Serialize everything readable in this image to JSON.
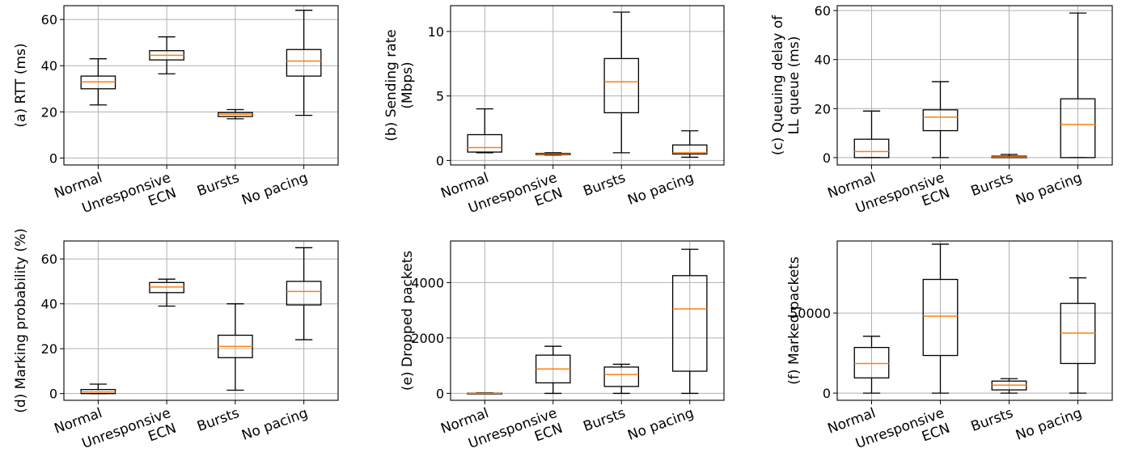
{
  "style": {
    "median_color": "#ff7f0e",
    "box_color": "#000000",
    "grid_color": "#b0b0b0"
  },
  "chart_data": [
    {
      "type": "box",
      "ylabel": [
        "(a) RTT (ms)"
      ],
      "categories": [
        [
          "Normal"
        ],
        [
          "Unresponsive",
          "ECN"
        ],
        [
          "Bursts"
        ],
        [
          "No pacing"
        ]
      ],
      "ylim": [
        -3,
        66
      ],
      "yticks": [
        0,
        20,
        40,
        60
      ],
      "yticklabels": [
        "0",
        "20",
        "40",
        "60"
      ],
      "grid": true,
      "boxes": [
        {
          "whislo": 23,
          "q1": 30,
          "med": 33,
          "q3": 35.5,
          "whishi": 43
        },
        {
          "whislo": 36.5,
          "q1": 42.5,
          "med": 44.5,
          "q3": 46.5,
          "whishi": 52.5
        },
        {
          "whislo": 17,
          "q1": 18,
          "med": 19,
          "q3": 19.7,
          "whishi": 21
        },
        {
          "whislo": 18.5,
          "q1": 35.5,
          "med": 42,
          "q3": 47,
          "whishi": 64
        }
      ]
    },
    {
      "type": "box",
      "ylabel": [
        "(b) Sending rate",
        "(Mbps)"
      ],
      "categories": [
        [
          "Normal"
        ],
        [
          "Unresponsive",
          "ECN"
        ],
        [
          "Bursts"
        ],
        [
          "No pacing"
        ]
      ],
      "ylim": [
        -0.35,
        12
      ],
      "yticks": [
        0,
        5,
        10
      ],
      "yticklabels": [
        "0",
        "5",
        "10"
      ],
      "grid": true,
      "boxes": [
        {
          "whislo": 0.6,
          "q1": 0.65,
          "med": 1.0,
          "q3": 2.0,
          "whishi": 4.0
        },
        {
          "whislo": 0.42,
          "q1": 0.45,
          "med": 0.5,
          "q3": 0.55,
          "whishi": 0.6
        },
        {
          "whislo": 0.6,
          "q1": 3.7,
          "med": 6.1,
          "q3": 7.9,
          "whishi": 11.5
        },
        {
          "whislo": 0.25,
          "q1": 0.5,
          "med": 0.6,
          "q3": 1.2,
          "whishi": 2.3
        }
      ]
    },
    {
      "type": "box",
      "ylabel": [
        "(c) Queuing delay of",
        "LL queue (ms)"
      ],
      "categories": [
        [
          "Normal"
        ],
        [
          "Unresponsive",
          "ECN"
        ],
        [
          "Bursts"
        ],
        [
          "No pacing"
        ]
      ],
      "ylim": [
        -3,
        62
      ],
      "yticks": [
        0,
        20,
        40,
        60
      ],
      "yticklabels": [
        "0",
        "20",
        "40",
        "60"
      ],
      "grid": true,
      "boxes": [
        {
          "whislo": 0,
          "q1": 0,
          "med": 2.5,
          "q3": 7.5,
          "whishi": 19
        },
        {
          "whislo": 0,
          "q1": 11,
          "med": 16.5,
          "q3": 19.5,
          "whishi": 31
        },
        {
          "whislo": 0,
          "q1": 0,
          "med": 0.3,
          "q3": 0.6,
          "whishi": 1.3
        },
        {
          "whislo": 0,
          "q1": 0,
          "med": 13.5,
          "q3": 24,
          "whishi": 59
        }
      ]
    },
    {
      "type": "box",
      "ylabel": [
        "(d) Marking probability (%)"
      ],
      "categories": [
        [
          "Normal"
        ],
        [
          "Unresponsive",
          "ECN"
        ],
        [
          "Bursts"
        ],
        [
          "No pacing"
        ]
      ],
      "ylim": [
        -3,
        68
      ],
      "yticks": [
        0,
        20,
        40,
        60
      ],
      "yticklabels": [
        "0",
        "20",
        "40",
        "60"
      ],
      "grid": true,
      "boxes": [
        {
          "whislo": 0,
          "q1": 0,
          "med": 0.7,
          "q3": 1.8,
          "whishi": 4.2
        },
        {
          "whislo": 39,
          "q1": 45,
          "med": 47.5,
          "q3": 49.5,
          "whishi": 51
        },
        {
          "whislo": 1.5,
          "q1": 16,
          "med": 21,
          "q3": 26,
          "whishi": 40
        },
        {
          "whislo": 24,
          "q1": 39.5,
          "med": 45.5,
          "q3": 50,
          "whishi": 65
        }
      ]
    },
    {
      "type": "box",
      "ylabel": [
        "(e) Dropped packets"
      ],
      "categories": [
        [
          "Normal"
        ],
        [
          "Unresponsive",
          "ECN"
        ],
        [
          "Bursts"
        ],
        [
          "No pacing"
        ]
      ],
      "ylim": [
        -250,
        5500
      ],
      "yticks": [
        0,
        2000,
        4000
      ],
      "yticklabels": [
        "0",
        "2000",
        "4000"
      ],
      "grid": true,
      "boxes": [
        {
          "whislo": 0,
          "q1": 0,
          "med": 0,
          "q3": 10,
          "whishi": 20
        },
        {
          "whislo": 0,
          "q1": 380,
          "med": 880,
          "q3": 1380,
          "whishi": 1700
        },
        {
          "whislo": 0,
          "q1": 250,
          "med": 680,
          "q3": 950,
          "whishi": 1050
        },
        {
          "whislo": 0,
          "q1": 800,
          "med": 3050,
          "q3": 4250,
          "whishi": 5200
        }
      ]
    },
    {
      "type": "box",
      "ylabel": [
        "(f) Marked packets"
      ],
      "categories": [
        [
          "Normal"
        ],
        [
          "Unresponsive",
          "ECN"
        ],
        [
          "Bursts"
        ],
        [
          "No pacing"
        ]
      ],
      "ylim": [
        -4500,
        95000
      ],
      "yticks": [
        0,
        50000
      ],
      "yticklabels": [
        "0",
        "50000"
      ],
      "grid": true,
      "boxes": [
        {
          "whislo": 0,
          "q1": 9500,
          "med": 18500,
          "q3": 28500,
          "whishi": 35500
        },
        {
          "whislo": 0,
          "q1": 23500,
          "med": 48000,
          "q3": 71000,
          "whishi": 93000
        },
        {
          "whislo": 0,
          "q1": 2000,
          "med": 5000,
          "q3": 7500,
          "whishi": 9000
        },
        {
          "whislo": 0,
          "q1": 18500,
          "med": 37500,
          "q3": 56000,
          "whishi": 72000
        }
      ]
    }
  ]
}
